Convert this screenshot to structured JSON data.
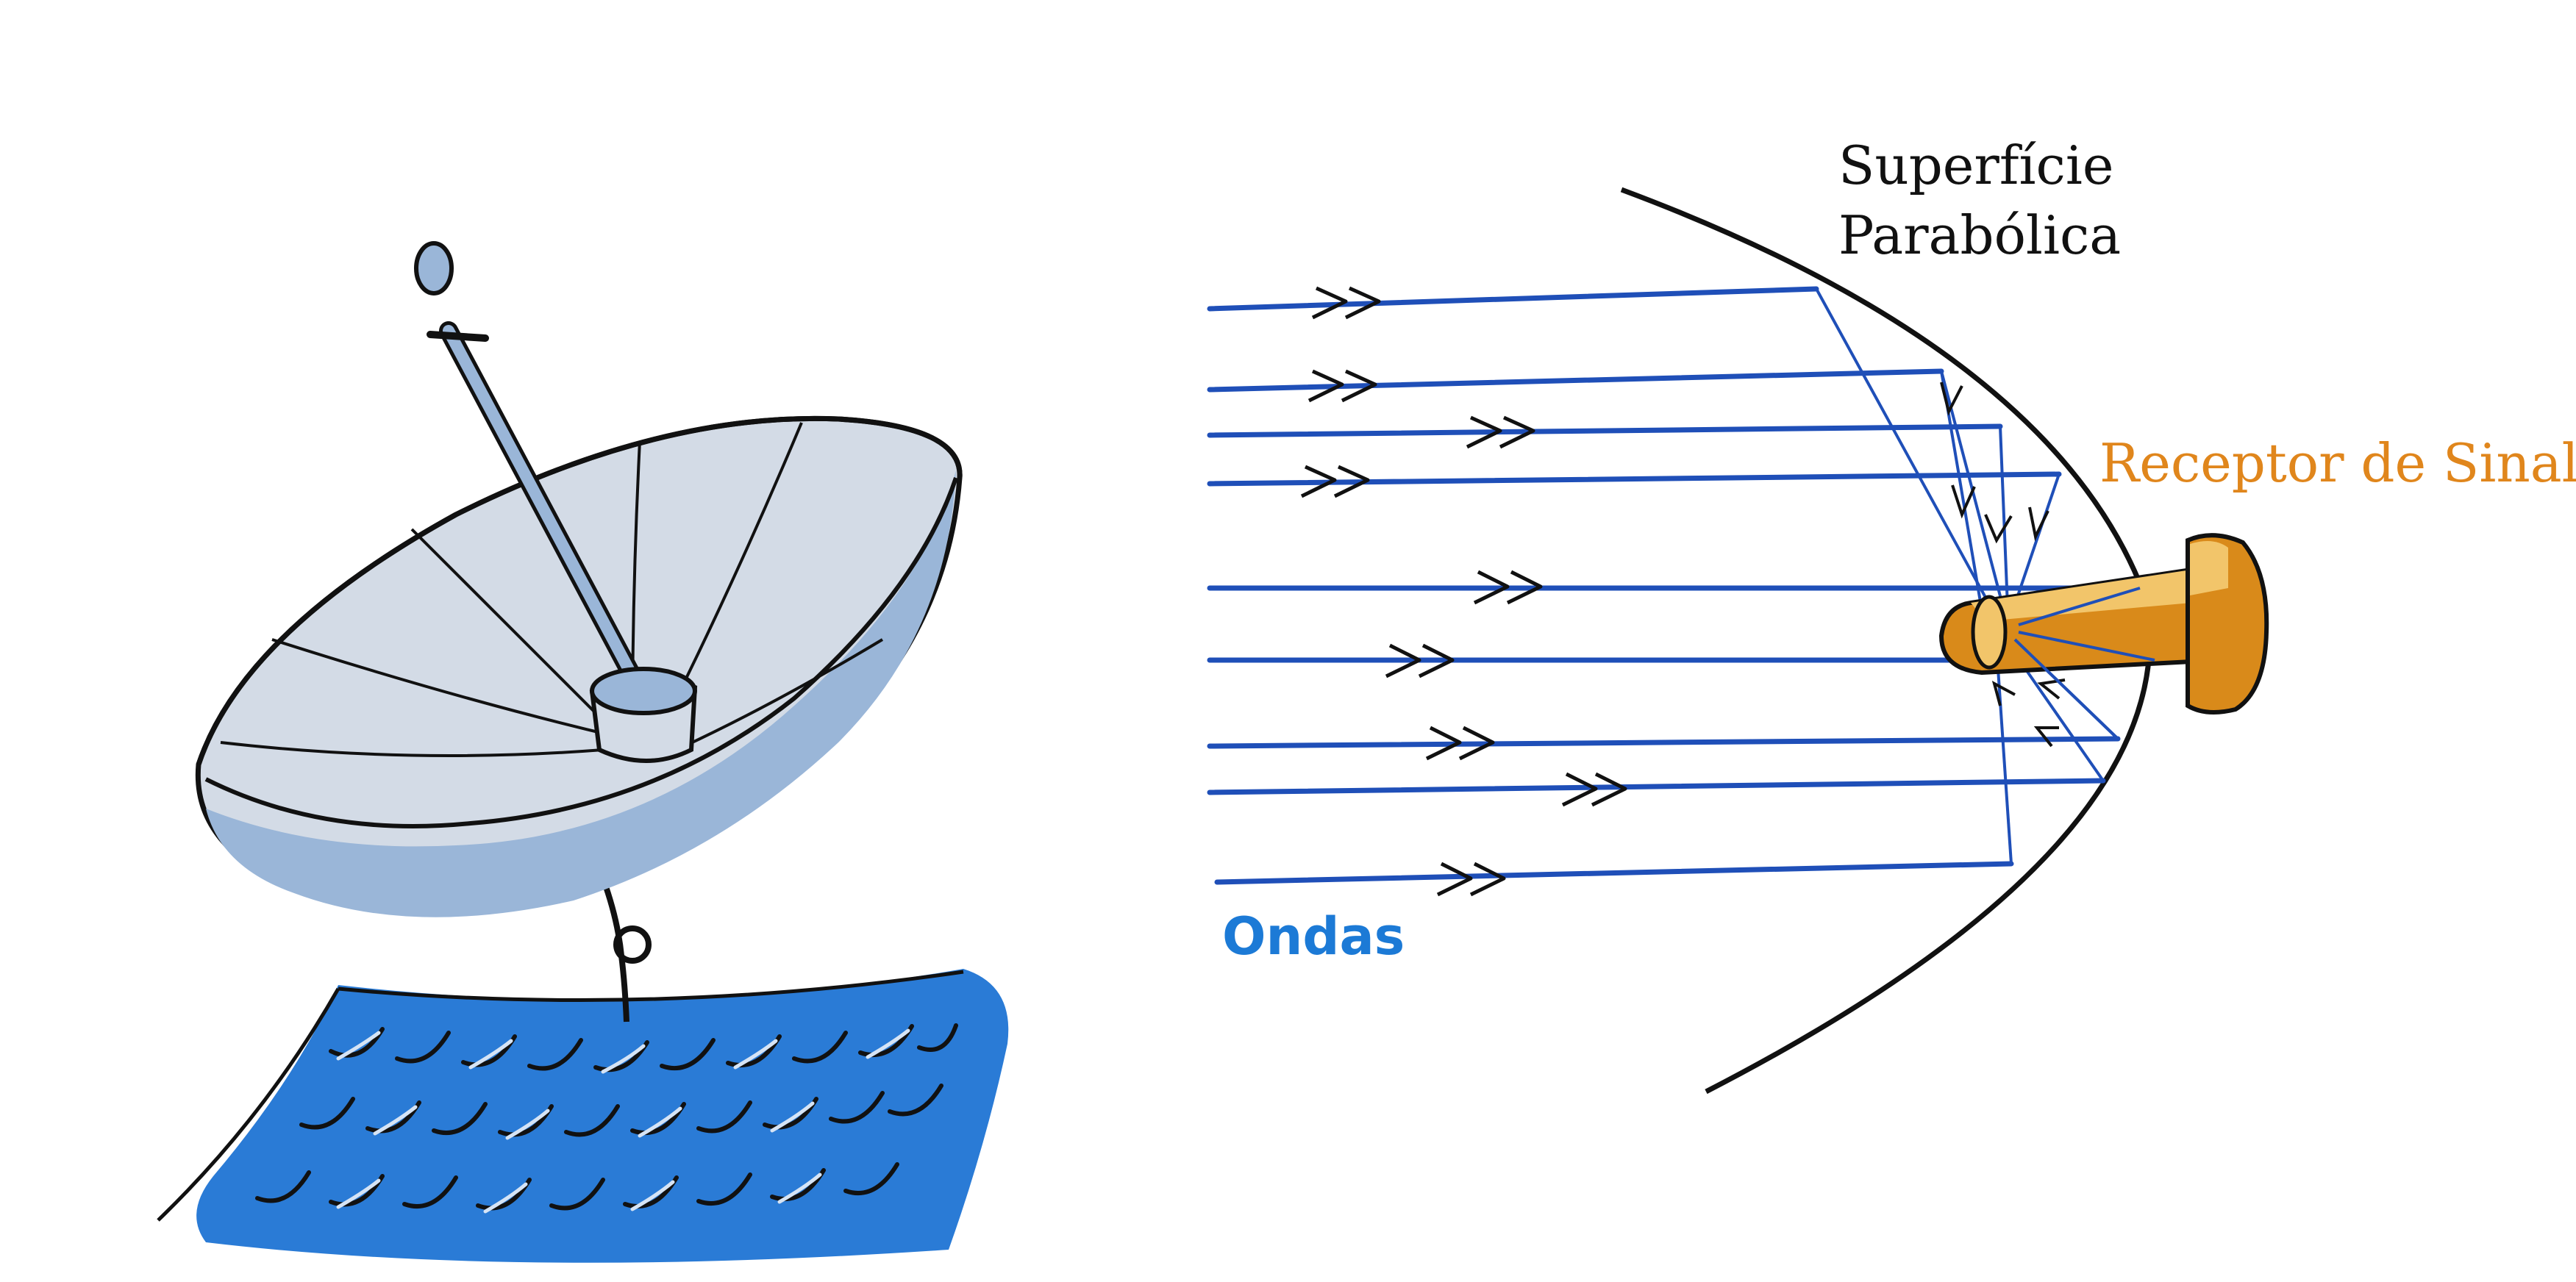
{
  "labels": {
    "surface_line1": "Superfície",
    "surface_line2": "Parabólica",
    "receiver": "Receptor de Sinal",
    "waves": "Ondas"
  },
  "colors": {
    "ink": "#111111",
    "ray_blue": "#1f4fb8",
    "roof_blue": "#2a7bd6",
    "dish_light": "#d3dbe6",
    "dish_shade": "#9ab6d8",
    "receiver_orange": "#d98a1a",
    "receiver_light": "#f2c56a",
    "text_orange": "#e0861c",
    "text_blue": "#1c7ad6"
  },
  "icons": {
    "dish": "satellite-dish-icon",
    "roof": "roof-tiles-icon",
    "receiver": "signal-receiver-icon",
    "arrow": "double-chevron-arrow-icon"
  }
}
